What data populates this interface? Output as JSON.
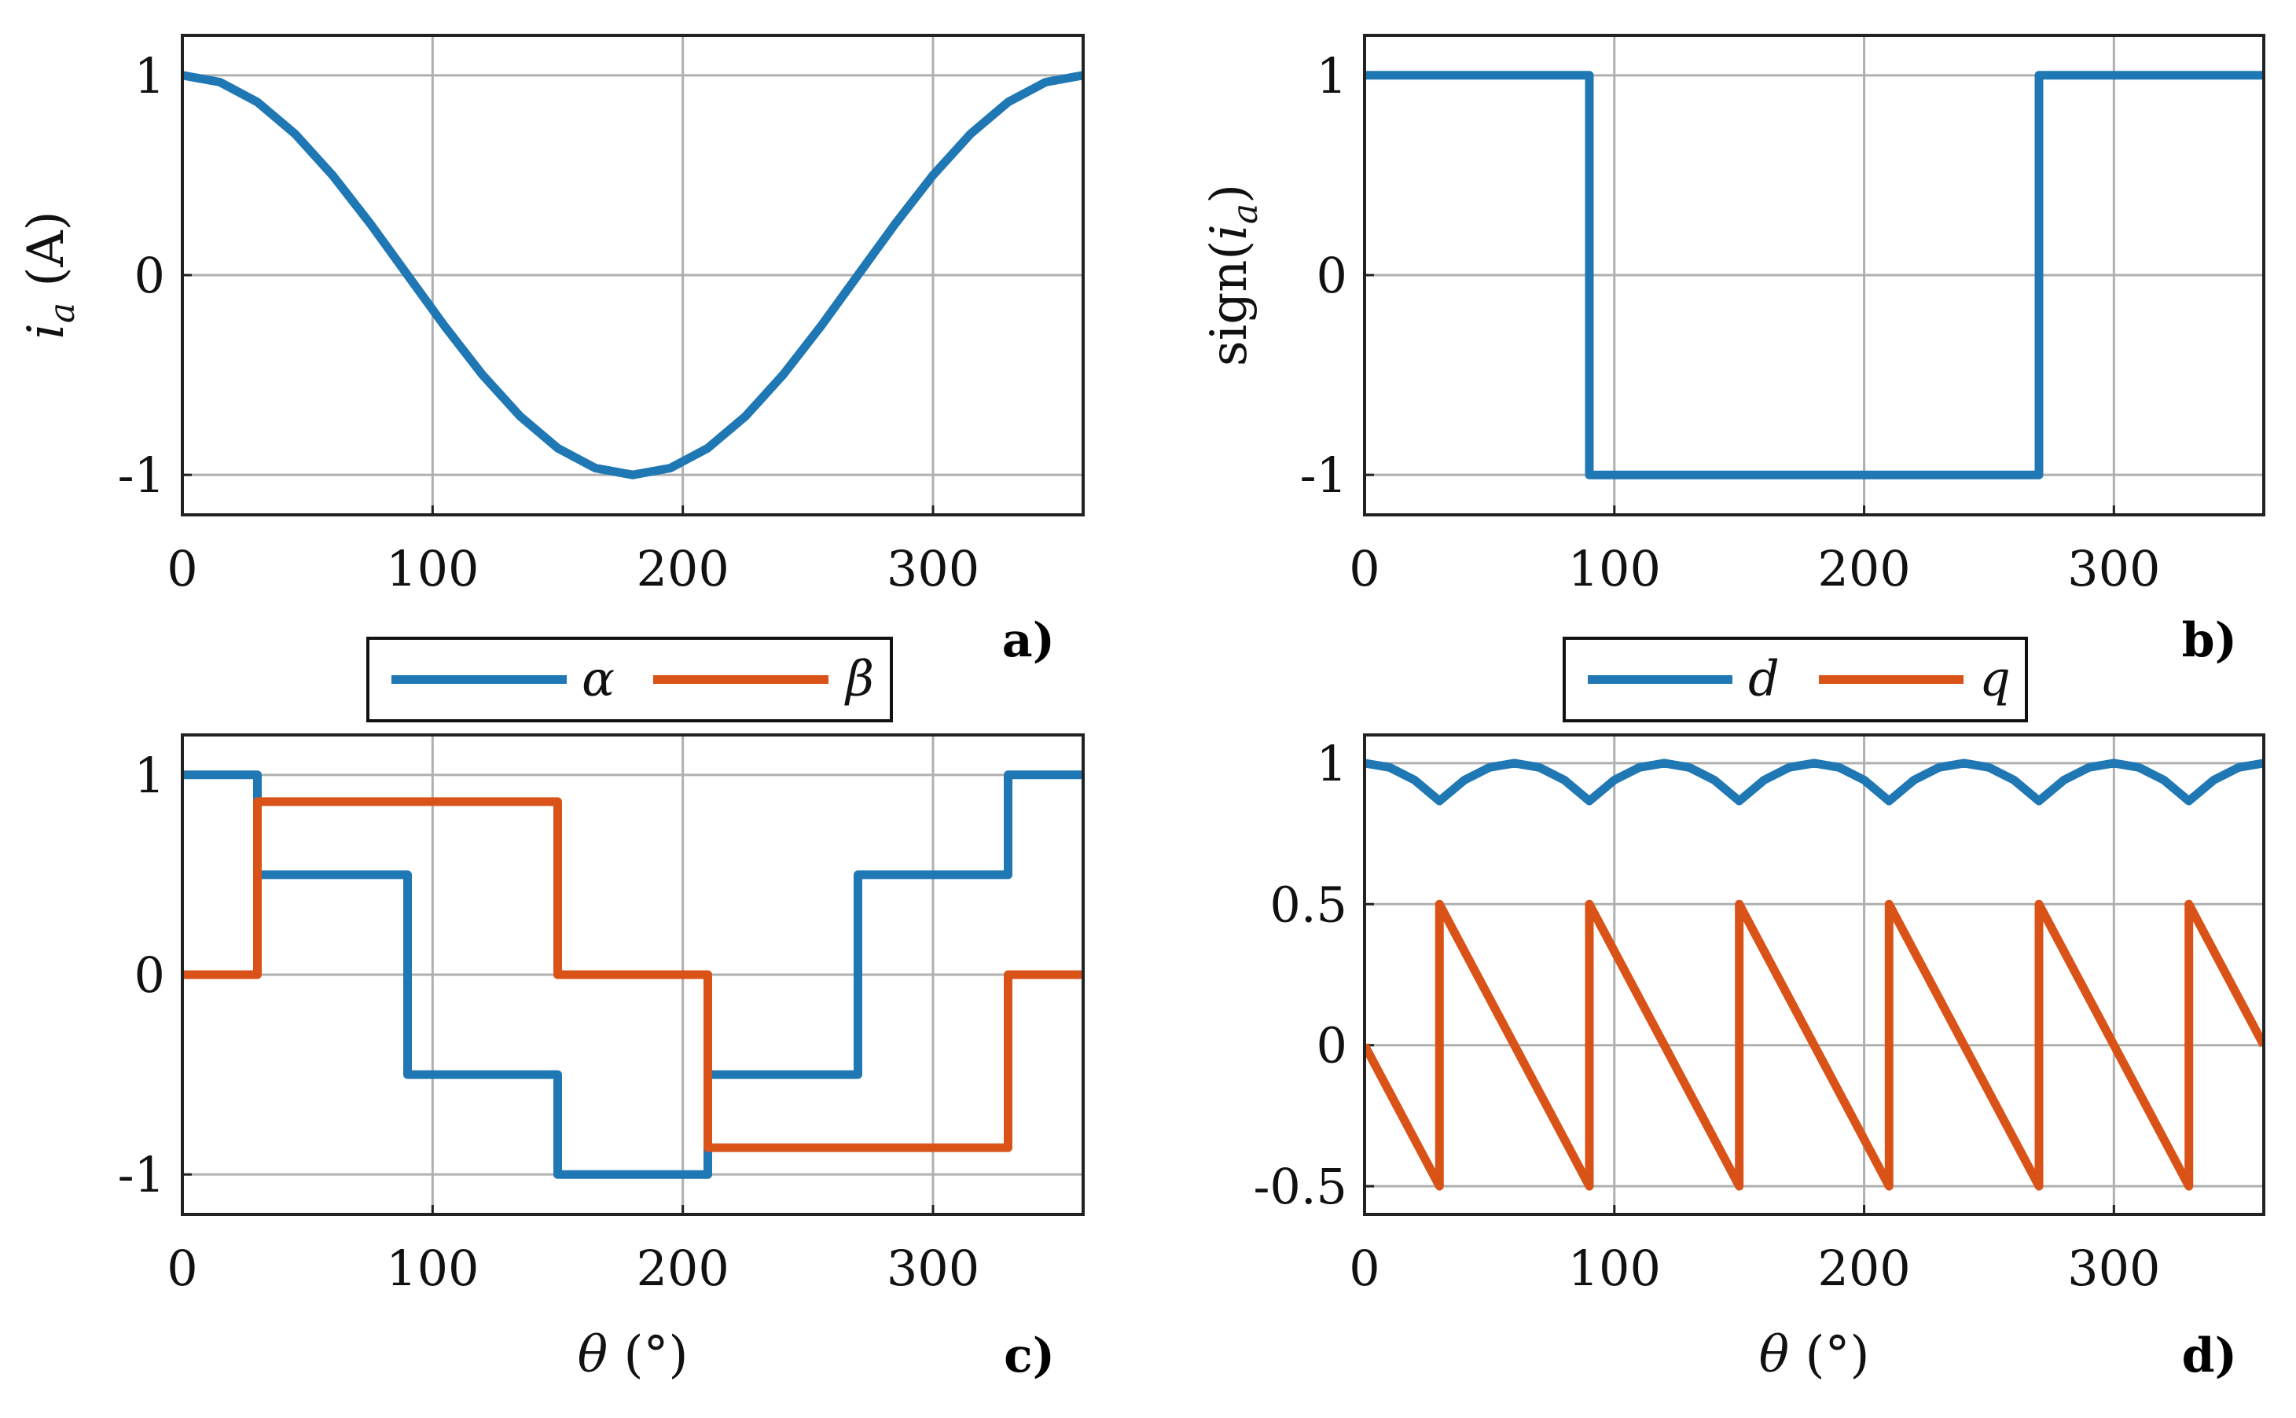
{
  "colors": {
    "blue": "#1f77b4",
    "orange": "#d95319",
    "grid": "#b0b0b0",
    "axis": "#222222"
  },
  "chart_data": [
    {
      "panel": "a)",
      "type": "line",
      "title": "",
      "xlabel": "",
      "ylabel": "i_a (A)",
      "ylabel_parts": {
        "sym": "i",
        "sub": "a",
        "unit": "(A)"
      },
      "xlim": [
        0,
        360
      ],
      "ylim": [
        -1.2,
        1.2
      ],
      "xticks": [
        0,
        100,
        200,
        300
      ],
      "xtick_labels": [
        "0",
        "100",
        "200",
        "300"
      ],
      "yticks": [
        -1,
        0,
        1
      ],
      "ytick_labels": [
        "-1",
        "0",
        "1"
      ],
      "grid": true,
      "series": [
        {
          "name": "i_a",
          "color": "#1f77b4",
          "x": [
            0,
            15,
            30,
            45,
            60,
            75,
            90,
            105,
            120,
            135,
            150,
            165,
            180,
            195,
            210,
            225,
            240,
            255,
            270,
            285,
            300,
            315,
            330,
            345,
            360
          ],
          "y": [
            1,
            0.966,
            0.866,
            0.707,
            0.5,
            0.259,
            0,
            -0.259,
            -0.5,
            -0.707,
            -0.866,
            -0.966,
            -1,
            -0.966,
            -0.866,
            -0.707,
            -0.5,
            -0.259,
            0,
            0.259,
            0.5,
            0.707,
            0.866,
            0.966,
            1
          ]
        }
      ]
    },
    {
      "panel": "b)",
      "type": "line",
      "title": "",
      "xlabel": "",
      "ylabel": "sign(i_a)",
      "ylabel_parts": {
        "pre": "sign(",
        "sym": "i",
        "sub": "a",
        "post": ")"
      },
      "xlim": [
        0,
        360
      ],
      "ylim": [
        -1.2,
        1.2
      ],
      "xticks": [
        0,
        100,
        200,
        300
      ],
      "xtick_labels": [
        "0",
        "100",
        "200",
        "300"
      ],
      "yticks": [
        -1,
        0,
        1
      ],
      "ytick_labels": [
        "-1",
        "0",
        "1"
      ],
      "grid": true,
      "series": [
        {
          "name": "sign(i_a)",
          "color": "#1f77b4",
          "x": [
            0,
            90,
            90,
            270,
            270,
            360
          ],
          "y": [
            1,
            1,
            -1,
            -1,
            1,
            1
          ]
        }
      ]
    },
    {
      "panel": "c)",
      "type": "line",
      "title": "",
      "xlabel": "θ (°)",
      "ylabel": "",
      "xlim": [
        0,
        360
      ],
      "ylim": [
        -1.2,
        1.2
      ],
      "xticks": [
        0,
        100,
        200,
        300
      ],
      "xtick_labels": [
        "0",
        "100",
        "200",
        "300"
      ],
      "yticks": [
        -1,
        0,
        1
      ],
      "ytick_labels": [
        "-1",
        "0",
        "1"
      ],
      "grid": true,
      "legend": [
        "α",
        "β"
      ],
      "series": [
        {
          "name": "α",
          "color": "#1f77b4",
          "x": [
            0,
            30,
            30,
            90,
            90,
            150,
            150,
            210,
            210,
            270,
            270,
            330,
            330,
            360
          ],
          "y": [
            1,
            1,
            0.5,
            0.5,
            -0.5,
            -0.5,
            -1,
            -1,
            -0.5,
            -0.5,
            0.5,
            0.5,
            1,
            1
          ]
        },
        {
          "name": "β",
          "color": "#d95319",
          "x": [
            0,
            30,
            30,
            150,
            150,
            210,
            210,
            330,
            330,
            360
          ],
          "y": [
            0,
            0,
            0.866,
            0.866,
            0,
            0,
            -0.866,
            -0.866,
            0,
            0
          ]
        }
      ]
    },
    {
      "panel": "d)",
      "type": "line",
      "title": "",
      "xlabel": "θ (°)",
      "ylabel": "",
      "xlim": [
        0,
        360
      ],
      "ylim": [
        -0.6,
        1.1
      ],
      "xticks": [
        0,
        100,
        200,
        300
      ],
      "xtick_labels": [
        "0",
        "100",
        "200",
        "300"
      ],
      "yticks": [
        -0.5,
        0,
        0.5,
        1
      ],
      "ytick_labels": [
        "-0.5",
        "0",
        "0.5",
        "1"
      ],
      "grid": true,
      "legend": [
        "d",
        "q"
      ],
      "series": [
        {
          "name": "d",
          "color": "#1f77b4",
          "x": [
            0,
            10,
            20,
            30,
            40,
            50,
            60,
            70,
            80,
            90,
            100,
            110,
            120,
            130,
            140,
            150,
            160,
            170,
            180,
            190,
            200,
            210,
            220,
            230,
            240,
            250,
            260,
            270,
            280,
            290,
            300,
            310,
            320,
            330,
            340,
            350,
            360
          ],
          "y": [
            1,
            0.985,
            0.94,
            0.866,
            0.94,
            0.985,
            1,
            0.985,
            0.94,
            0.866,
            0.94,
            0.985,
            1,
            0.985,
            0.94,
            0.866,
            0.94,
            0.985,
            1,
            0.985,
            0.94,
            0.866,
            0.94,
            0.985,
            1,
            0.985,
            0.94,
            0.866,
            0.94,
            0.985,
            1,
            0.985,
            0.94,
            0.866,
            0.94,
            0.985,
            1
          ]
        },
        {
          "name": "q",
          "color": "#d95319",
          "x": [
            0,
            30,
            30,
            90,
            90,
            150,
            150,
            210,
            210,
            270,
            270,
            330,
            330,
            360
          ],
          "y": [
            0,
            -0.5,
            0.5,
            -0.5,
            0.5,
            -0.5,
            0.5,
            -0.5,
            0.5,
            -0.5,
            0.5,
            -0.5,
            0.5,
            0
          ]
        }
      ]
    }
  ]
}
